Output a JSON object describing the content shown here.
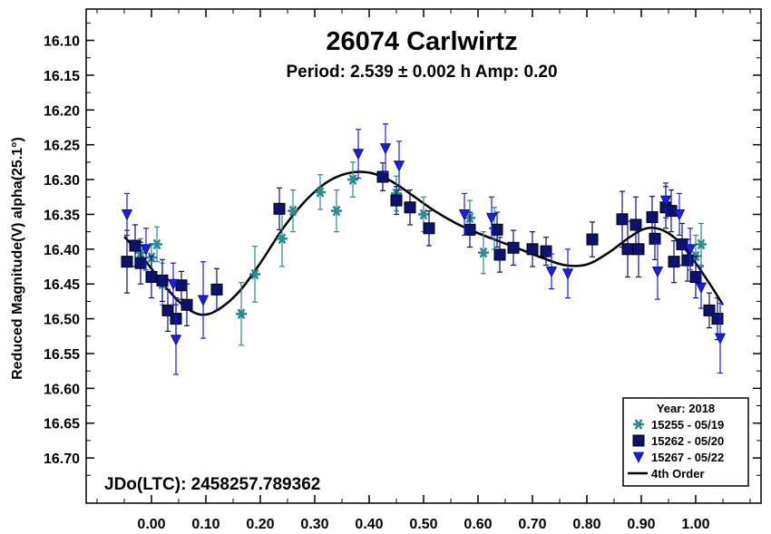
{
  "chart_data": {
    "type": "scatter",
    "title": "26074 Carlwirtz",
    "subtitle": "Period: 2.539 ± 0.002 h  Amp: 0.20",
    "ylabel": "Reduced Magnitude(V) alpha(25.1°)",
    "xlabel": "",
    "annotation": "JDo(LTC): 2458257.789362",
    "x_ticks": [
      "0.00",
      "0.10",
      "0.20",
      "0.30",
      "0.40",
      "0.50",
      "0.60",
      "0.70",
      "0.80",
      "0.90",
      "1.00"
    ],
    "y_ticks": [
      "16.10",
      "16.15",
      "16.20",
      "16.25",
      "16.30",
      "16.35",
      "16.40",
      "16.45",
      "16.50",
      "16.55",
      "16.60",
      "16.65",
      "16.70"
    ],
    "xlim": [
      -0.12,
      1.12
    ],
    "ylim": [
      16.055,
      16.765
    ],
    "y_inverted": true,
    "grid": false,
    "legend": {
      "placement": "bottom-right",
      "title": "Year: 2018",
      "entries": [
        {
          "label": "15255 - 05/19",
          "marker": "asterisk",
          "color": "#2a8c8c"
        },
        {
          "label": "15262 - 05/20",
          "marker": "square",
          "color": "#0d1270"
        },
        {
          "label": "15267 - 05/22",
          "marker": "triangle-down",
          "color": "#1c1ee6"
        },
        {
          "label": "4th Order",
          "marker": "line",
          "color": "#000000"
        }
      ]
    },
    "fit": {
      "name": "4th Order",
      "x": [
        -0.05,
        -0.02,
        0.0,
        0.03,
        0.06,
        0.09,
        0.12,
        0.16,
        0.2,
        0.24,
        0.28,
        0.32,
        0.36,
        0.4,
        0.44,
        0.48,
        0.52,
        0.56,
        0.6,
        0.64,
        0.68,
        0.72,
        0.76,
        0.8,
        0.84,
        0.88,
        0.91,
        0.94,
        0.97,
        1.0,
        1.03,
        1.05
      ],
      "y": [
        16.382,
        16.408,
        16.428,
        16.458,
        16.482,
        16.494,
        16.488,
        16.462,
        16.42,
        16.372,
        16.333,
        16.305,
        16.291,
        16.29,
        16.302,
        16.323,
        16.345,
        16.363,
        16.377,
        16.389,
        16.401,
        16.413,
        16.423,
        16.422,
        16.405,
        16.382,
        16.37,
        16.373,
        16.39,
        16.42,
        16.455,
        16.48
      ]
    },
    "series": [
      {
        "name": "15255 - 05/19",
        "marker": "asterisk",
        "color": "#2a8c8c",
        "points": [
          {
            "x": -0.02,
            "y": 16.405,
            "err": 0.02
          },
          {
            "x": 0.0,
            "y": 16.412,
            "err": 0.02
          },
          {
            "x": 0.01,
            "y": 16.393,
            "err": 0.025
          },
          {
            "x": 0.02,
            "y": 16.45,
            "err": 0.03
          },
          {
            "x": 0.165,
            "y": 16.493,
            "err": 0.045
          },
          {
            "x": 0.19,
            "y": 16.436,
            "err": 0.04
          },
          {
            "x": 0.24,
            "y": 16.385,
            "err": 0.04
          },
          {
            "x": 0.26,
            "y": 16.345,
            "err": 0.03
          },
          {
            "x": 0.31,
            "y": 16.318,
            "err": 0.025
          },
          {
            "x": 0.34,
            "y": 16.345,
            "err": 0.03
          },
          {
            "x": 0.37,
            "y": 16.3,
            "err": 0.025
          },
          {
            "x": 0.45,
            "y": 16.32,
            "err": 0.025
          },
          {
            "x": 0.5,
            "y": 16.35,
            "err": 0.025
          },
          {
            "x": 0.585,
            "y": 16.355,
            "err": 0.025
          },
          {
            "x": 0.61,
            "y": 16.405,
            "err": 0.03
          },
          {
            "x": 0.63,
            "y": 16.37,
            "err": 0.03
          },
          {
            "x": 1.0,
            "y": 16.41,
            "err": 0.03
          },
          {
            "x": 1.01,
            "y": 16.393,
            "err": 0.03
          }
        ]
      },
      {
        "name": "15262 - 05/20",
        "marker": "square",
        "color": "#0d1270",
        "points": [
          {
            "x": -0.045,
            "y": 16.418,
            "err": 0.045
          },
          {
            "x": -0.03,
            "y": 16.395,
            "err": 0.03
          },
          {
            "x": -0.02,
            "y": 16.42,
            "err": 0.03
          },
          {
            "x": 0.0,
            "y": 16.44,
            "err": 0.03
          },
          {
            "x": 0.02,
            "y": 16.445,
            "err": 0.03
          },
          {
            "x": 0.03,
            "y": 16.488,
            "err": 0.03
          },
          {
            "x": 0.045,
            "y": 16.5,
            "err": 0.03
          },
          {
            "x": 0.055,
            "y": 16.452,
            "err": 0.02
          },
          {
            "x": 0.065,
            "y": 16.48,
            "err": 0.03
          },
          {
            "x": 0.12,
            "y": 16.458,
            "err": 0.03
          },
          {
            "x": 0.235,
            "y": 16.342,
            "err": 0.03
          },
          {
            "x": 0.425,
            "y": 16.296,
            "err": 0.02
          },
          {
            "x": 0.45,
            "y": 16.33,
            "err": 0.02
          },
          {
            "x": 0.475,
            "y": 16.34,
            "err": 0.025
          },
          {
            "x": 0.51,
            "y": 16.37,
            "err": 0.025
          },
          {
            "x": 0.585,
            "y": 16.372,
            "err": 0.025
          },
          {
            "x": 0.635,
            "y": 16.372,
            "err": 0.025
          },
          {
            "x": 0.64,
            "y": 16.408,
            "err": 0.025
          },
          {
            "x": 0.665,
            "y": 16.398,
            "err": 0.025
          },
          {
            "x": 0.7,
            "y": 16.4,
            "err": 0.025
          },
          {
            "x": 0.725,
            "y": 16.403,
            "err": 0.02
          },
          {
            "x": 0.81,
            "y": 16.386,
            "err": 0.025
          },
          {
            "x": 0.865,
            "y": 16.357,
            "err": 0.04
          },
          {
            "x": 0.875,
            "y": 16.4,
            "err": 0.04
          },
          {
            "x": 0.89,
            "y": 16.365,
            "err": 0.04
          },
          {
            "x": 0.895,
            "y": 16.4,
            "err": 0.04
          },
          {
            "x": 0.92,
            "y": 16.354,
            "err": 0.03
          },
          {
            "x": 0.925,
            "y": 16.385,
            "err": 0.03
          },
          {
            "x": 0.945,
            "y": 16.34,
            "err": 0.03
          },
          {
            "x": 0.955,
            "y": 16.345,
            "err": 0.03
          },
          {
            "x": 0.96,
            "y": 16.418,
            "err": 0.03
          },
          {
            "x": 0.975,
            "y": 16.393,
            "err": 0.03
          },
          {
            "x": 0.985,
            "y": 16.416,
            "err": 0.03
          },
          {
            "x": 1.0,
            "y": 16.44,
            "err": 0.03
          },
          {
            "x": 1.025,
            "y": 16.488,
            "err": 0.025
          },
          {
            "x": 1.04,
            "y": 16.5,
            "err": 0.03
          }
        ]
      },
      {
        "name": "15267 - 05/22",
        "marker": "triangle-down",
        "color": "#1c1ee6",
        "points": [
          {
            "x": -0.045,
            "y": 16.35,
            "err": 0.03
          },
          {
            "x": -0.01,
            "y": 16.4,
            "err": 0.03
          },
          {
            "x": 0.04,
            "y": 16.45,
            "err": 0.03
          },
          {
            "x": 0.045,
            "y": 16.53,
            "err": 0.05
          },
          {
            "x": 0.095,
            "y": 16.473,
            "err": 0.055
          },
          {
            "x": 0.38,
            "y": 16.263,
            "err": 0.035
          },
          {
            "x": 0.43,
            "y": 16.255,
            "err": 0.035
          },
          {
            "x": 0.455,
            "y": 16.28,
            "err": 0.035
          },
          {
            "x": 0.575,
            "y": 16.35,
            "err": 0.03
          },
          {
            "x": 0.625,
            "y": 16.355,
            "err": 0.03
          },
          {
            "x": 0.735,
            "y": 16.432,
            "err": 0.025
          },
          {
            "x": 0.765,
            "y": 16.435,
            "err": 0.035
          },
          {
            "x": 0.93,
            "y": 16.432,
            "err": 0.04
          },
          {
            "x": 0.945,
            "y": 16.33,
            "err": 0.025
          },
          {
            "x": 0.97,
            "y": 16.35,
            "err": 0.03
          },
          {
            "x": 0.99,
            "y": 16.4,
            "err": 0.03
          },
          {
            "x": 1.01,
            "y": 16.455,
            "err": 0.03
          },
          {
            "x": 1.045,
            "y": 16.528,
            "err": 0.05
          }
        ]
      }
    ]
  }
}
